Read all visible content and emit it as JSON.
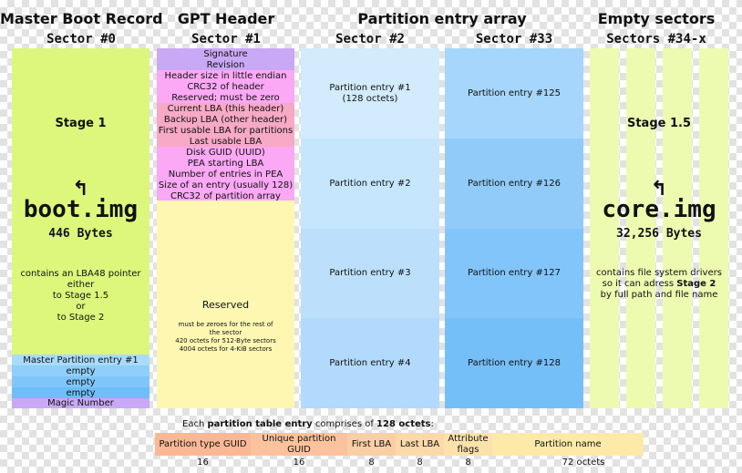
{
  "sections": [
    {
      "title": "Master Boot Record",
      "sector": "Sector #0"
    },
    {
      "title": "GPT Header",
      "sector": "Sector #1"
    },
    {
      "title": "Partition entry array",
      "sector2": "Sector #2",
      "sector33": "Sector #33"
    },
    {
      "title": "Empty sectors",
      "sector": "Sectors #34-x"
    }
  ],
  "mbr": {
    "stage": "Stage 1",
    "arrow": "↰",
    "image": "boot.img",
    "bytes": "446 Bytes",
    "desc": [
      "contains an LBA48 pointer",
      "either",
      "to Stage 1.5",
      "or",
      "to Stage 2"
    ],
    "entries": [
      "Master Partition entry #1",
      "empty",
      "empty",
      "empty"
    ],
    "magic": "Magic Number"
  },
  "gpt": {
    "rows": [
      {
        "label": "Signature",
        "color": "#c9a8f5"
      },
      {
        "label": "Revision",
        "color": "#c9a8f5"
      },
      {
        "label": "Header size in little endian",
        "color": "#fba8f5"
      },
      {
        "label": "CRC32 of header",
        "color": "#fba8f5"
      },
      {
        "label": "Reserved; must be zero",
        "color": "#fba8f5"
      },
      {
        "label": "Current LBA (this header)",
        "color": "#f7a9c6"
      },
      {
        "label": "Backup LBA (other header)",
        "color": "#f7a9c6"
      },
      {
        "label": "First usable LBA for partitions",
        "color": "#f7a9c6"
      },
      {
        "label": "Last usable LBA",
        "color": "#f7a9c6"
      },
      {
        "label": "Disk GUID (UUID)",
        "color": "#fba8f5"
      },
      {
        "label": "PEA starting LBA",
        "color": "#fba8f5"
      },
      {
        "label": "Number of entries in PEA",
        "color": "#fba8f5"
      },
      {
        "label": "Size of an entry (usually 128)",
        "color": "#fba8f5"
      },
      {
        "label": "CRC32 of partition array",
        "color": "#fba8f5"
      }
    ],
    "reserved": "Reserved",
    "reserved_note": [
      "must be zeroes for the rest of",
      "the sector",
      "420 octets for 512-Byte sectors",
      "4004 octets for 4-KiB sectors"
    ]
  },
  "pea": {
    "left": [
      {
        "label": "Partition entry #1",
        "sub": "(128 octets)"
      },
      {
        "label": "Partition entry #2",
        "sub": ""
      },
      {
        "label": "Partition entry #3",
        "sub": ""
      },
      {
        "label": "Partition entry #4",
        "sub": ""
      }
    ],
    "right": [
      {
        "label": "Partition entry #125"
      },
      {
        "label": "Partition entry #126"
      },
      {
        "label": "Partition entry #127"
      },
      {
        "label": "Partition entry #128"
      }
    ]
  },
  "empty": {
    "stage": "Stage 1.5",
    "arrow": "↰",
    "image": "core.img",
    "bytes": "32,256 Bytes",
    "desc1": "contains file system drivers",
    "desc2_pre": "so it can adress ",
    "desc2_bold": "Stage 2",
    "desc3": "by full path and file name"
  },
  "entry_table": {
    "caption_pre": "Each ",
    "caption_bold1": "partition table entry",
    "caption_mid": " comprises of ",
    "caption_bold2": "128 octets",
    "caption_post": ":",
    "fields": [
      {
        "label": "Partition type GUID",
        "size": "16",
        "color": "#fbb895"
      },
      {
        "label": "Unique partition GUID",
        "size": "16",
        "color": "#fbc39d"
      },
      {
        "label": "First LBA",
        "size": "8",
        "color": "#fbcfa5"
      },
      {
        "label": "Last LBA",
        "size": "8",
        "color": "#fbd9a8"
      },
      {
        "label": "Attribute flags",
        "size": "8",
        "color": "#fde2ac"
      },
      {
        "label": "Partition name",
        "size": "72 octets",
        "color": "#fdeaa8"
      }
    ]
  }
}
